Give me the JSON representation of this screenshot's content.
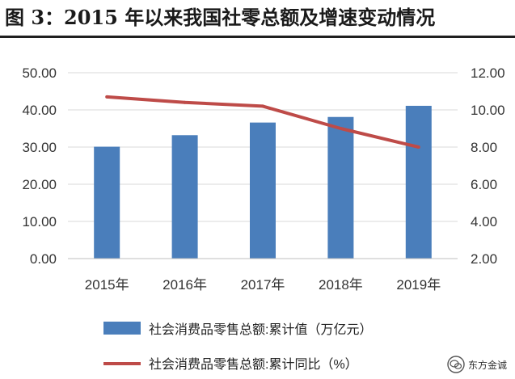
{
  "figure_title": "图 3：2015 年以来我国社零总额及增速变动情况",
  "watermark": {
    "text": "东方金诚"
  },
  "chart_data": {
    "type": "bar",
    "categories": [
      "2015年",
      "2016年",
      "2017年",
      "2018年",
      "2019年"
    ],
    "series": [
      {
        "name": "社会消费品零售总额:累计值（万亿元）",
        "type": "bar",
        "axis": "left",
        "color": "#4a7ebb",
        "values": [
          30.1,
          33.2,
          36.6,
          38.1,
          41.1
        ]
      },
      {
        "name": "社会消费品零售总额:累计同比（%）",
        "type": "line",
        "axis": "right",
        "color": "#be4b48",
        "values": [
          10.7,
          10.4,
          10.2,
          9.0,
          8.0
        ]
      }
    ],
    "y_left": {
      "min": 0,
      "max": 50,
      "step": 10,
      "tick_labels": [
        "0.00",
        "10.00",
        "20.00",
        "30.00",
        "40.00",
        "50.00"
      ]
    },
    "y_right": {
      "min": 2,
      "max": 12,
      "step": 2,
      "tick_labels": [
        "2.00",
        "4.00",
        "6.00",
        "8.00",
        "10.00",
        "12.00"
      ]
    },
    "grid": true,
    "legend_position": "bottom"
  }
}
